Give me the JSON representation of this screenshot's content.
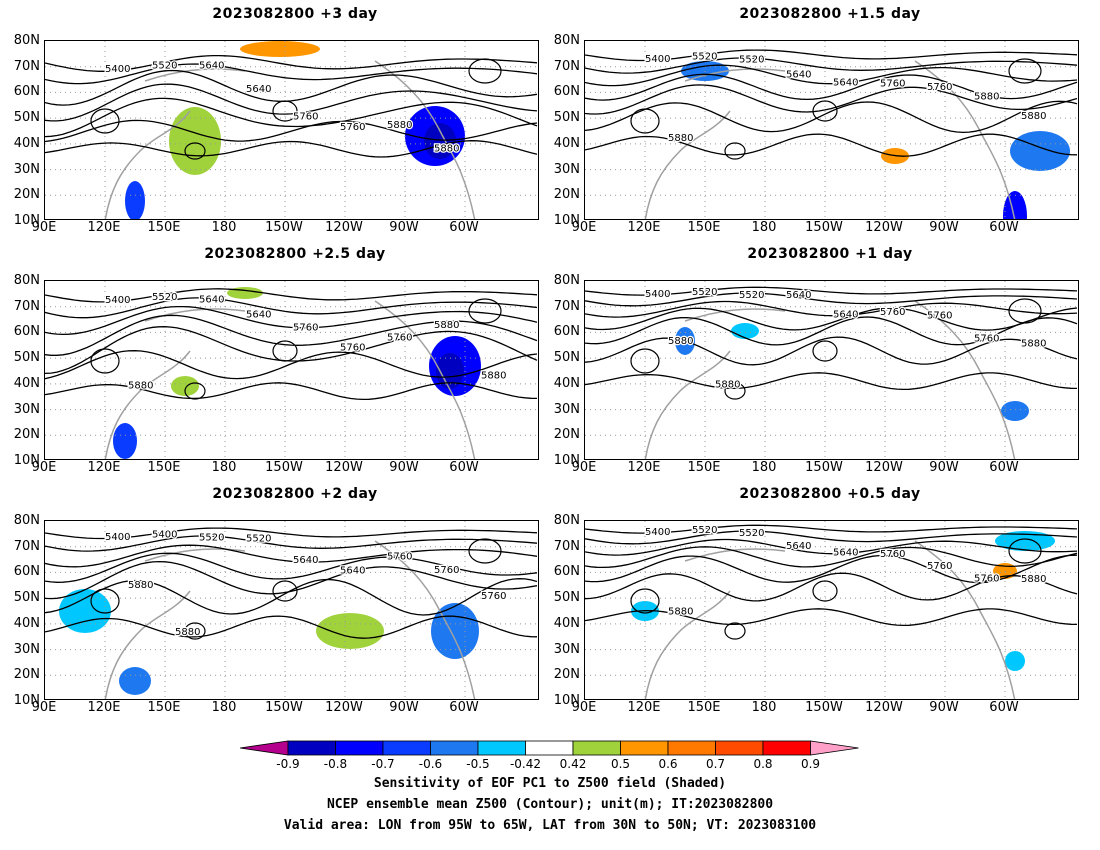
{
  "panels": [
    {
      "title": "2023082800 +3 day",
      "contour_labels": [
        "5400",
        "5520",
        "5640",
        "5640",
        "5760",
        "5760",
        "5880",
        "5880"
      ]
    },
    {
      "title": "2023082800 +1.5 day",
      "contour_labels": [
        "5400",
        "5520",
        "5520",
        "5640",
        "5640",
        "5760",
        "5760",
        "5880",
        "5880",
        "5880"
      ]
    },
    {
      "title": "2023082800 +2.5 day",
      "contour_labels": [
        "5400",
        "5520",
        "5640",
        "5640",
        "5760",
        "5760",
        "5760",
        "5880",
        "5880",
        "5880"
      ]
    },
    {
      "title": "2023082800 +1 day",
      "contour_labels": [
        "5400",
        "5520",
        "5520",
        "5640",
        "5640",
        "5760",
        "5760",
        "5760",
        "5880",
        "5880",
        "5880"
      ]
    },
    {
      "title": "2023082800 +2 day",
      "contour_labels": [
        "5400",
        "5400",
        "5520",
        "5520",
        "5640",
        "5640",
        "5760",
        "5760",
        "5760",
        "5880",
        "5880"
      ]
    },
    {
      "title": "2023082800 +0.5 day",
      "contour_labels": [
        "5400",
        "5520",
        "5520",
        "5640",
        "5640",
        "5760",
        "5760",
        "5760",
        "5880",
        "5880"
      ]
    }
  ],
  "lat_labels": [
    "80N",
    "70N",
    "60N",
    "50N",
    "40N",
    "30N",
    "20N",
    "10N"
  ],
  "lon_labels": [
    "90E",
    "120E",
    "150E",
    "180",
    "150W",
    "120W",
    "90W",
    "60W"
  ],
  "colorbar": {
    "values": [
      "-0.9",
      "-0.8",
      "-0.7",
      "-0.6",
      "-0.5",
      "-0.42",
      "0.42",
      "0.5",
      "0.6",
      "0.7",
      "0.8",
      "0.9"
    ],
    "colors": [
      "#0000c0",
      "#0000ff",
      "#0a3cff",
      "#1e78f0",
      "#00c8ff",
      "#ffffff",
      "#a0d23c",
      "#ff9600",
      "#ff7800",
      "#ff4b00",
      "#ff0000"
    ],
    "low_end_color": "#b4008c",
    "high_end_color": "#ffa0c8"
  },
  "footer": {
    "line1": "Sensitivity of EOF PC1 to Z500 field (Shaded)",
    "line2": "NCEP ensemble mean Z500 (Contour); unit(m); IT:2023082800",
    "line3": "Valid area: LON from 95W to 65W, LAT from 30N to 50N; VT: 2023083100"
  }
}
